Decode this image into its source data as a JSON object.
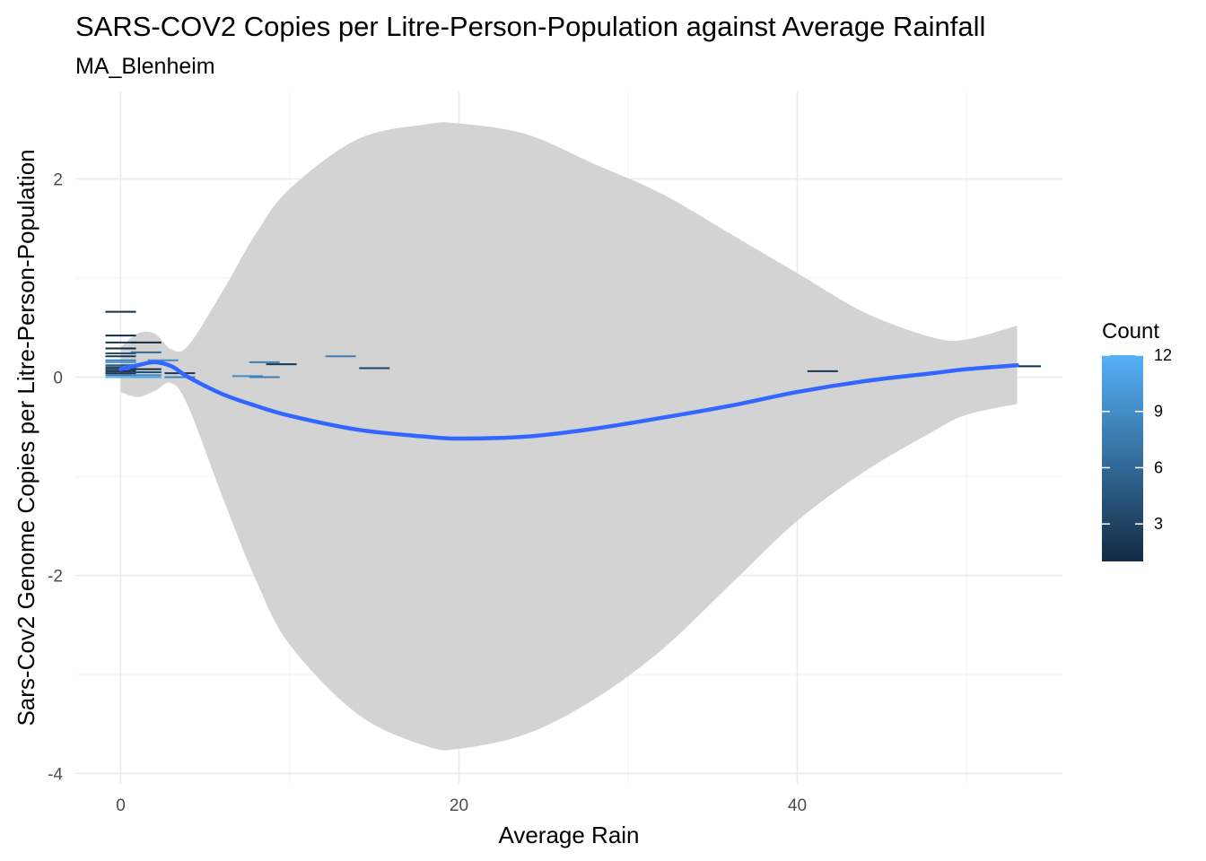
{
  "chart_data": {
    "type": "scatter",
    "title": "SARS-COV2 Copies per Litre-Person-Population against Average Rainfall",
    "subtitle": "MA_Blenheim",
    "xlabel": "Average Rain",
    "ylabel": "Sars-Cov2 Genome Copies per Litre-Person-Population",
    "xlim": [
      -5,
      54.5
    ],
    "ylim": [
      -4.1,
      2.85
    ],
    "x_ticks": [
      0,
      20,
      40
    ],
    "y_ticks": [
      -4,
      -2,
      0,
      2
    ],
    "x_tick_labels": [
      "0",
      "20",
      "40"
    ],
    "y_tick_labels": [
      "-4",
      "-2",
      "0",
      "2"
    ],
    "grid": true,
    "legend": {
      "title": "Count",
      "placement": "right",
      "range": [
        1,
        12
      ],
      "ticks": [
        3,
        6,
        9,
        12
      ],
      "tick_labels": [
        "3",
        "6",
        "9",
        "12"
      ],
      "color_low": "#132B43",
      "color_high": "#56B1F7"
    },
    "points": [
      {
        "x": 0,
        "y": 0.66,
        "count": 1
      },
      {
        "x": 0,
        "y": 0.42,
        "count": 1
      },
      {
        "x": 0,
        "y": 0.35,
        "count": 2
      },
      {
        "x": 0,
        "y": 0.29,
        "count": 1
      },
      {
        "x": 0,
        "y": 0.24,
        "count": 4
      },
      {
        "x": 0,
        "y": 0.21,
        "count": 2
      },
      {
        "x": 0,
        "y": 0.17,
        "count": 8
      },
      {
        "x": 0,
        "y": 0.15,
        "count": 10
      },
      {
        "x": 0,
        "y": 0.12,
        "count": 5
      },
      {
        "x": 0,
        "y": 0.1,
        "count": 3
      },
      {
        "x": 0,
        "y": 0.08,
        "count": 2
      },
      {
        "x": 0,
        "y": 0.06,
        "count": 1
      },
      {
        "x": 0,
        "y": 0.04,
        "count": 2
      },
      {
        "x": 0,
        "y": 0.02,
        "count": 7
      },
      {
        "x": 0,
        "y": 0.0,
        "count": 12
      },
      {
        "x": 1.5,
        "y": 0.35,
        "count": 1
      },
      {
        "x": 1.5,
        "y": 0.25,
        "count": 6
      },
      {
        "x": 1.5,
        "y": 0.08,
        "count": 1
      },
      {
        "x": 1.5,
        "y": 0.05,
        "count": 4
      },
      {
        "x": 1.5,
        "y": 0.02,
        "count": 9
      },
      {
        "x": 1.5,
        "y": 0.0,
        "count": 11
      },
      {
        "x": 2.5,
        "y": 0.17,
        "count": 9
      },
      {
        "x": 3.5,
        "y": 0.04,
        "count": 2
      },
      {
        "x": 3.5,
        "y": 0.0,
        "count": 8
      },
      {
        "x": 7.5,
        "y": 0.01,
        "count": 9
      },
      {
        "x": 8.5,
        "y": 0.15,
        "count": 8
      },
      {
        "x": 8.5,
        "y": 0.0,
        "count": 8
      },
      {
        "x": 9.5,
        "y": 0.13,
        "count": 2
      },
      {
        "x": 13,
        "y": 0.21,
        "count": 8
      },
      {
        "x": 15,
        "y": 0.09,
        "count": 3
      },
      {
        "x": 41.5,
        "y": 0.06,
        "count": 2
      },
      {
        "x": 53.5,
        "y": 0.11,
        "count": 1
      }
    ],
    "smooth": {
      "x": [
        0,
        1,
        2,
        3,
        4,
        6,
        8,
        10,
        14,
        18,
        20,
        24,
        28,
        32,
        36,
        40,
        44,
        48,
        50,
        53
      ],
      "y": [
        0.08,
        0.12,
        0.15,
        0.11,
        0.0,
        -0.17,
        -0.29,
        -0.39,
        -0.53,
        -0.6,
        -0.62,
        -0.6,
        -0.52,
        -0.41,
        -0.29,
        -0.15,
        -0.04,
        0.04,
        0.08,
        0.12
      ],
      "ymin": [
        -0.15,
        -0.2,
        -0.14,
        -0.06,
        -0.3,
        -1.2,
        -2.05,
        -2.7,
        -3.4,
        -3.72,
        -3.75,
        -3.6,
        -3.25,
        -2.75,
        -2.1,
        -1.45,
        -0.95,
        -0.55,
        -0.38,
        -0.27
      ],
      "ymax": [
        0.3,
        0.44,
        0.44,
        0.28,
        0.32,
        0.86,
        1.45,
        1.9,
        2.4,
        2.55,
        2.56,
        2.45,
        2.15,
        1.85,
        1.45,
        1.05,
        0.65,
        0.4,
        0.38,
        0.52
      ]
    },
    "colors": {
      "smooth_line": "#3366FF",
      "ribbon": "#D3D3D3",
      "grid_major": "#EBEBEB",
      "grid_minor": "#F5F5F5"
    }
  }
}
